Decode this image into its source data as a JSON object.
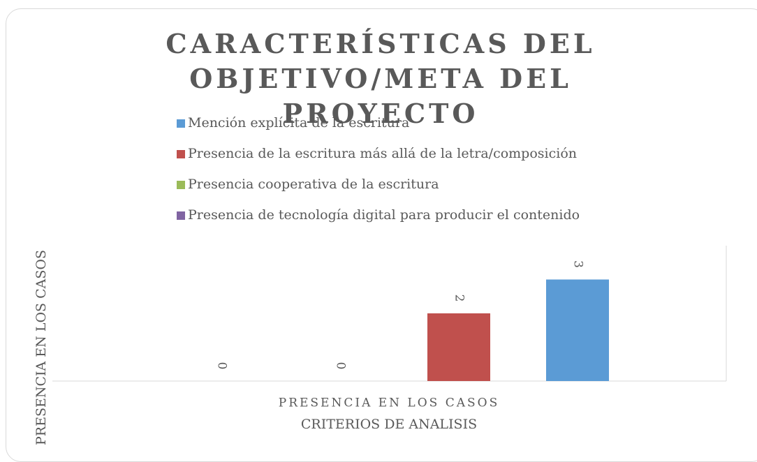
{
  "chart_data": {
    "type": "bar",
    "title": "CARACTERÍSTICAS DEL OBJETIVO/META DEL PROYECTO",
    "categories": [
      "PRESENCIA EN LOS CASOS"
    ],
    "x_label": "CRITERIOS DE ANALISIS",
    "y_label": "PRESENCIA EN LOS CASOS",
    "series": [
      {
        "name": "Mención explícita de la escritura",
        "color": "#5b9bd5",
        "values": [
          3
        ]
      },
      {
        "name": "Presencia de la escritura más allá de la letra/composición",
        "color": "#c0504d",
        "values": [
          2
        ]
      },
      {
        "name": "Presencia cooperativa de la escritura",
        "color": "#9bbb59",
        "values": [
          0
        ]
      },
      {
        "name": "Presencia de tecnología digital para  producir el contenido",
        "color": "#8064a2",
        "values": [
          0
        ]
      }
    ],
    "ylim": [
      0,
      4
    ],
    "legend": "top"
  }
}
